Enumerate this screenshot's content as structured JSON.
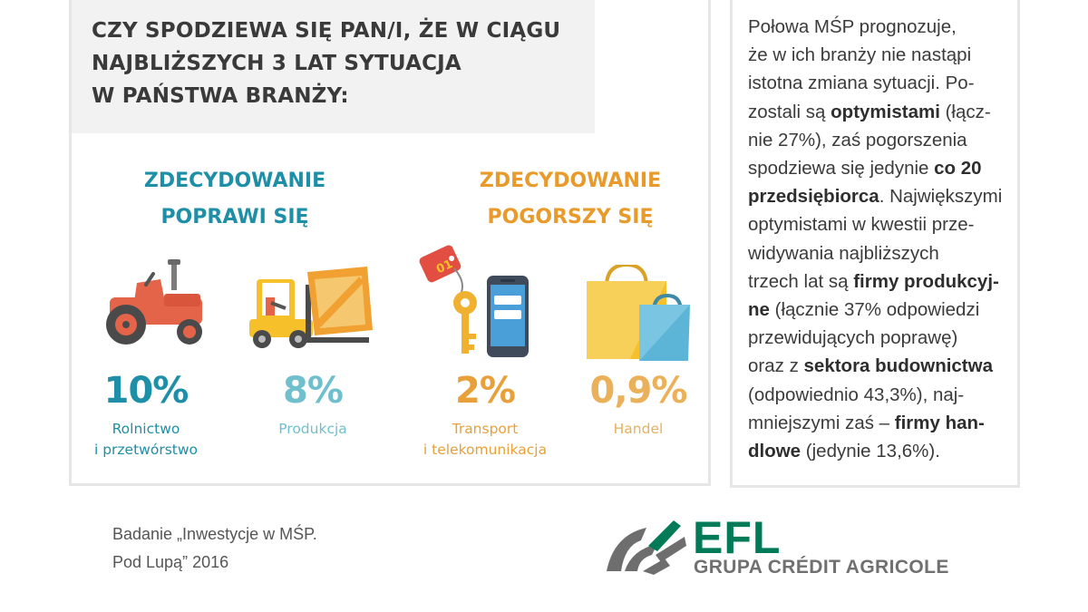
{
  "question": "CZY SPODZIEWA SIĘ PAN/I, ŻE W CIĄGU\nNAJBLIŻSZYCH 3 LAT SYTUACJA\nW PAŃSTWA BRANŻY:",
  "groups": {
    "improve": "ZDECYDOWANIE\nPOPRAWI SIĘ",
    "worsen": "ZDECYDOWANIE\nPOGORSZY SIĘ"
  },
  "sectors": [
    {
      "value": "10%",
      "label": "Rolnictwo\ni przetwórstwo",
      "icon": "tractor-icon"
    },
    {
      "value": "8%",
      "label": "Produkcja",
      "icon": "forklift-icon"
    },
    {
      "value": "2%",
      "label": "Transport\ni telekomunikacja",
      "icon": "key-phone-icon"
    },
    {
      "value": "0,9%",
      "label": "Handel",
      "icon": "shopping-bags-icon"
    }
  ],
  "key_tag_text": "01",
  "description": [
    {
      "t": "Połowa MŚP prognozuje,\nże w ich branży nie nastąpi\nistotna zmiana sytuacji. Po-\nzostali są ",
      "b": false
    },
    {
      "t": "optymistami",
      "b": true
    },
    {
      "t": " (łącz-\nnie 27%), zaś pogorszenia\nspodziewa się jedynie ",
      "b": false
    },
    {
      "t": "co 20\nprzedsiębiorca",
      "b": true
    },
    {
      "t": ". Największymi\noptymistami w kwestii prze-\nwidywania najbliższych\ntrzech lat są ",
      "b": false
    },
    {
      "t": "firmy produkcyj-\nne",
      "b": true
    },
    {
      "t": " (łącznie 37% odpowiedzi\nprzewidujących poprawę)\noraz z ",
      "b": false
    },
    {
      "t": "sektora budownictwa",
      "b": true
    },
    {
      "t": "\n(odpowiednio 43,3%), naj-\nmniejszymi zaś – ",
      "b": false
    },
    {
      "t": "firmy han-\ndlowe",
      "b": true
    },
    {
      "t": " (jedynie 13,6%).",
      "b": false
    }
  ],
  "source": "Badanie „Inwestycje w MŚP.\nPod Lupą” 2016",
  "logo": {
    "brand": "EFL",
    "subtitle": "GRUPA CRÉDIT AGRICOLE"
  },
  "colors": {
    "teal": "#1e8fa6",
    "light_teal": "#6fbfcc",
    "orange": "#e8a13a",
    "green": "#007a57",
    "gray": "#707070"
  }
}
